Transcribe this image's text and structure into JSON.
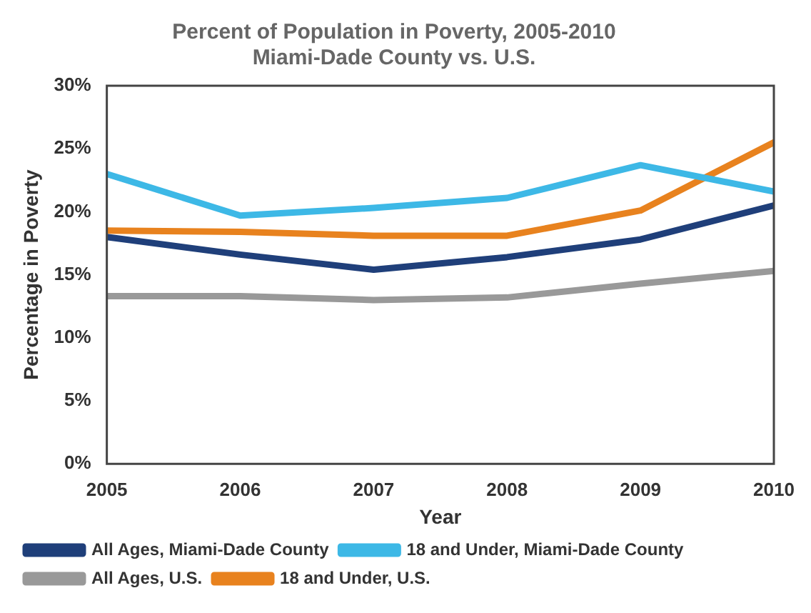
{
  "chart_data": {
    "type": "line",
    "title": "Percent of Population in Poverty, 2005-2010",
    "subtitle": "Miami-Dade County vs. U.S.",
    "xlabel": "Year",
    "ylabel": "Percentage in Poverty",
    "x": [
      2005,
      2006,
      2007,
      2008,
      2009,
      2010
    ],
    "series": [
      {
        "name": "All Ages, Miami-Dade County",
        "color": "#1f3f7a",
        "values": [
          18.0,
          16.6,
          15.4,
          16.4,
          17.8,
          20.5
        ]
      },
      {
        "name": "18 and Under, Miami-Dade County",
        "color": "#3db8e6",
        "values": [
          23.0,
          19.7,
          20.3,
          21.1,
          23.7,
          21.6
        ]
      },
      {
        "name": "All Ages, U.S.",
        "color": "#999999",
        "values": [
          13.3,
          13.3,
          13.0,
          13.2,
          14.3,
          15.3
        ]
      },
      {
        "name": "18 and Under, U.S.",
        "color": "#e8821e",
        "values": [
          18.5,
          18.4,
          18.1,
          18.1,
          20.1,
          25.5
        ]
      }
    ],
    "xlim": [
      2005,
      2010
    ],
    "xticks": [
      2005,
      2006,
      2007,
      2008,
      2009,
      2010
    ],
    "ylim": [
      0,
      30
    ],
    "yticks": [
      {
        "value": 0,
        "label": "0%"
      },
      {
        "value": 5,
        "label": "5%"
      },
      {
        "value": 10,
        "label": "10%"
      },
      {
        "value": 15,
        "label": "15%"
      },
      {
        "value": 20,
        "label": "20%"
      },
      {
        "value": 25,
        "label": "25%"
      },
      {
        "value": 30,
        "label": "30%"
      }
    ],
    "grid": false,
    "legend": "bottom",
    "marker": "none",
    "line_style": "solid"
  }
}
